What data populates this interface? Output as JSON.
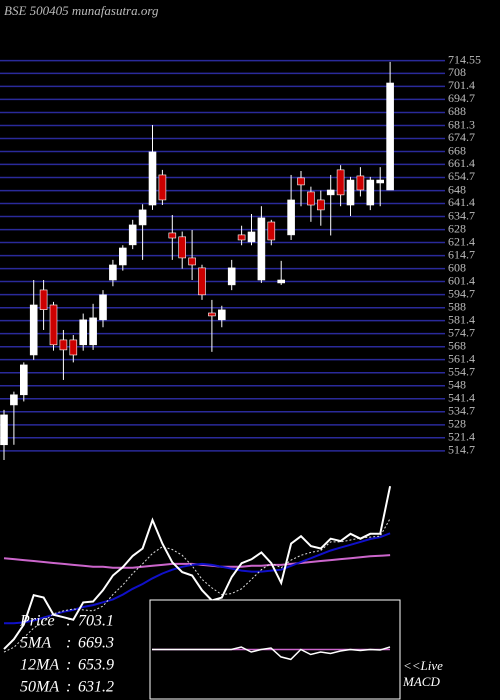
{
  "chart_data": [
    {
      "type": "candlestick",
      "title": "BSE 500405 munafasutra.org",
      "open": [
        517.8,
        538.2,
        543.4,
        563.8,
        597.1,
        589.4,
        571.5,
        571.5,
        569,
        569,
        581.8,
        602.2,
        609.9,
        620.2,
        630.4,
        640.6,
        656,
        626.3,
        624.3,
        613.5,
        608.4,
        585.3,
        581.8,
        599.7,
        625.3,
        621.7,
        602.2,
        631.9,
        600.7,
        625.3,
        654.5,
        647.3,
        643.2,
        645.8,
        658.6,
        640.6,
        655.5,
        640.6,
        651.9,
        648.3
      ],
      "high": [
        535.7,
        545,
        560,
        602.2,
        602.2,
        591,
        576.6,
        574,
        585,
        590,
        597,
        612.5,
        620,
        633,
        641,
        681.6,
        658.6,
        635.5,
        627,
        627.8,
        610,
        592,
        589,
        612.5,
        630,
        636,
        640,
        633,
        612,
        656,
        658,
        650,
        648,
        656,
        661,
        655,
        660,
        655,
        660,
        713.9
      ],
      "low": [
        510,
        517.8,
        540,
        561.3,
        576.6,
        566,
        551,
        560,
        566,
        566.4,
        578,
        599,
        607,
        618,
        612.5,
        638.1,
        640.6,
        612.5,
        608,
        602.2,
        592,
        565.4,
        578,
        597,
        620,
        620,
        600.7,
        620,
        599.7,
        622.7,
        640,
        632,
        630,
        625,
        640,
        635,
        645,
        638,
        640,
        648.3
      ],
      "close": [
        533.1,
        543.4,
        558.7,
        589.4,
        587,
        569,
        566.4,
        563.8,
        581.8,
        582.8,
        594.6,
        609.9,
        618.6,
        630.4,
        638.1,
        667.8,
        643.2,
        623.7,
        613.5,
        609.9,
        594.6,
        583.8,
        586.9,
        608.4,
        622.7,
        626.8,
        634,
        622.7,
        602.2,
        643.2,
        650.9,
        640.6,
        638.1,
        648.3,
        645.8,
        653.4,
        648.3,
        653.4,
        653.4,
        703.1
      ],
      "up_color": "#ffffff",
      "down_color": "#cc0000",
      "grid_color": "#2a2a9a",
      "ylim": [
        510,
        720
      ],
      "yticks": [
        714.55,
        708,
        701.4,
        694.7,
        688,
        681.3,
        674.7,
        668,
        661.4,
        654.7,
        648,
        641.4,
        634.7,
        628,
        621.4,
        614.7,
        608,
        601.4,
        594.7,
        588,
        581.4,
        574.7,
        568,
        561.4,
        554.7,
        548,
        541.4,
        534.7,
        528,
        521.4,
        514.7
      ],
      "grid": true
    },
    {
      "type": "line",
      "price_label": "Price",
      "price_color": "#ffffff",
      "legend_separator": ":",
      "ylim": [
        480,
        720
      ],
      "series": [
        {
          "name": "5MA",
          "color": "#dddddd",
          "values": [
            530,
            535,
            545,
            555,
            562,
            570,
            573,
            575,
            574,
            573,
            578,
            590,
            600,
            612,
            622,
            633,
            640,
            637,
            631,
            620,
            606,
            597,
            590,
            591,
            596,
            606,
            616,
            623,
            618,
            626,
            631,
            634,
            636,
            645,
            645,
            647,
            649,
            650,
            651,
            669.3
          ]
        },
        {
          "name": "12MA",
          "color": "#1010c8",
          "values": [
            560,
            560,
            561,
            563,
            566,
            569,
            572,
            574,
            577,
            579,
            582,
            585,
            590,
            596,
            601,
            607,
            612,
            616,
            619,
            621,
            622,
            621,
            619,
            617,
            615,
            614,
            614,
            615,
            616,
            620,
            624,
            628,
            632,
            636,
            639,
            642,
            645,
            648,
            650,
            653.9
          ]
        },
        {
          "name": "50MA",
          "color": "#cc66cc",
          "values": [
            628,
            627,
            626,
            625,
            624,
            623,
            622,
            621,
            620,
            619,
            619,
            618,
            618,
            618,
            619,
            620,
            621,
            622,
            622,
            622,
            621,
            620,
            619,
            619,
            619,
            620,
            620,
            621,
            621,
            622,
            623,
            624,
            625,
            626,
            627,
            628,
            629,
            630,
            630.5,
            631.2
          ]
        }
      ]
    },
    {
      "type": "macd",
      "annotation": "<<Live",
      "label": "MACD",
      "ylim": [
        -10,
        10
      ],
      "series": [
        {
          "color": "#ffffff",
          "values": [
            0,
            0,
            0,
            0,
            0,
            0,
            0,
            0,
            0,
            0.5,
            -0.5,
            0,
            0.3,
            -1.5,
            -2,
            0,
            -1,
            -0.5,
            -0.8,
            -0.3,
            0,
            -0.2,
            0,
            -0.1,
            0.5
          ]
        },
        {
          "color": "#cc66cc",
          "values": [
            0,
            0,
            0,
            0,
            0,
            0,
            0,
            0,
            0,
            0,
            0,
            0,
            0,
            0,
            0,
            0,
            0,
            0,
            0,
            0,
            0,
            0,
            0,
            0,
            0
          ]
        }
      ]
    }
  ]
}
